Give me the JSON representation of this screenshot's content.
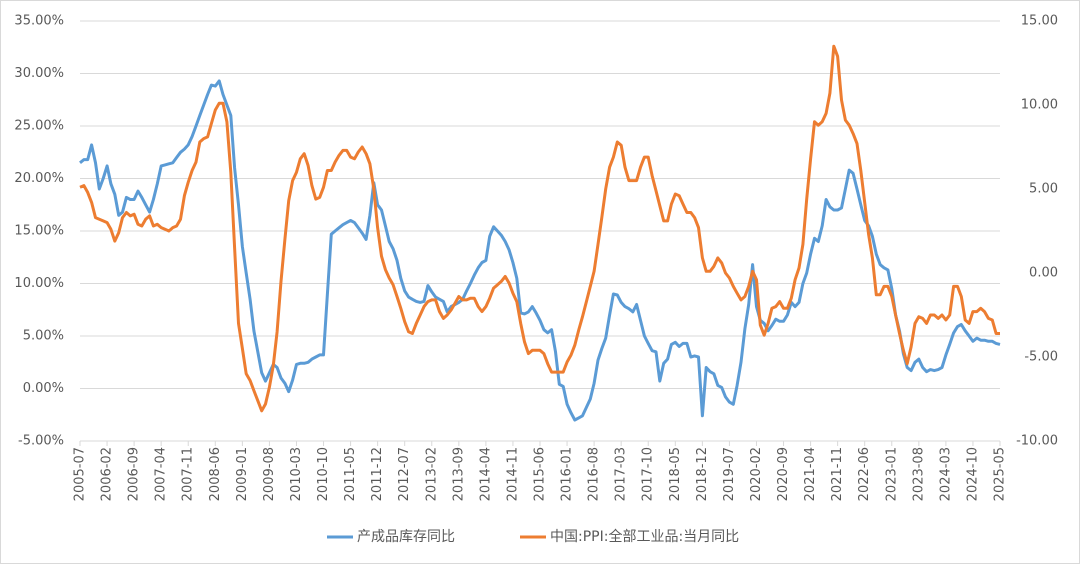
{
  "chart_data": {
    "type": "line",
    "categories": [
      "2005-07",
      null,
      null,
      null,
      null,
      null,
      null,
      "2006-02",
      null,
      null,
      null,
      null,
      null,
      null,
      "2006-09",
      null,
      null,
      null,
      null,
      null,
      null,
      "2007-04",
      null,
      null,
      null,
      null,
      null,
      null,
      "2007-11",
      null,
      null,
      null,
      null,
      null,
      null,
      "2008-06",
      null,
      null,
      null,
      null,
      null,
      null,
      "2009-01",
      null,
      null,
      null,
      null,
      null,
      null,
      "2009-08",
      null,
      null,
      null,
      null,
      null,
      null,
      "2010-03",
      null,
      null,
      null,
      null,
      null,
      null,
      "2010-10",
      null,
      null,
      null,
      null,
      null,
      null,
      "2011-05",
      null,
      null,
      null,
      null,
      null,
      null,
      "2011-12",
      null,
      null,
      null,
      null,
      null,
      null,
      "2012-07",
      null,
      null,
      null,
      null,
      null,
      null,
      "2013-02",
      null,
      null,
      null,
      null,
      null,
      null,
      "2013-09",
      null,
      null,
      null,
      null,
      null,
      null,
      "2014-04",
      null,
      null,
      null,
      null,
      null,
      null,
      "2014-11",
      null,
      null,
      null,
      null,
      null,
      null,
      "2015-06",
      null,
      null,
      null,
      null,
      null,
      null,
      "2016-01",
      null,
      null,
      null,
      null,
      null,
      null,
      "2016-08",
      null,
      null,
      null,
      null,
      null,
      null,
      "2017-03",
      null,
      null,
      null,
      null,
      null,
      null,
      "2017-10",
      null,
      null,
      null,
      null,
      null,
      null,
      "2018-05",
      null,
      null,
      null,
      null,
      null,
      null,
      "2018-12",
      null,
      null,
      null,
      null,
      null,
      null,
      "2019-07",
      null,
      null,
      null,
      null,
      null,
      null,
      "2020-02",
      null,
      null,
      null,
      null,
      null,
      null,
      "2020-09",
      null,
      null,
      null,
      null,
      null,
      null,
      "2021-04",
      null,
      null,
      null,
      null,
      null,
      null,
      "2021-11",
      null,
      null,
      null,
      null,
      null,
      null,
      "2022-06",
      null,
      null,
      null,
      null,
      null,
      null,
      "2023-01",
      null,
      null,
      null,
      null,
      null,
      null,
      "2023-08",
      null,
      null,
      null,
      null,
      null,
      null,
      "2024-03",
      null,
      null,
      null,
      null,
      null,
      null,
      "2024-10",
      null,
      null,
      null,
      null,
      null,
      null,
      "2025-05"
    ],
    "series": [
      {
        "name": "产成品库存同比",
        "color": "#5b9bd5",
        "values": [
          21.5,
          21.8,
          21.8,
          23.2,
          21.5,
          19.0,
          20.0,
          21.2,
          19.5,
          18.5,
          16.5,
          16.8,
          18.2,
          18.0,
          18.0,
          18.8,
          18.2,
          17.5,
          16.8,
          18.0,
          19.5,
          21.2,
          21.3,
          21.4,
          21.5,
          22.0,
          22.5,
          22.8,
          23.2,
          24.0,
          25.0,
          26.0,
          27.0,
          28.0,
          28.9,
          28.8,
          29.3,
          28.0,
          27.0,
          26.0,
          21.0,
          17.5,
          13.5,
          11.0,
          8.5,
          5.5,
          3.5,
          1.5,
          0.7,
          1.5,
          2.3,
          2.0,
          1.0,
          0.5,
          -0.3,
          0.8,
          2.3,
          2.4,
          2.4,
          2.5,
          2.8,
          3.0,
          3.2,
          3.2,
          9.0,
          14.7,
          15.0,
          15.3,
          15.6,
          15.8,
          16.0,
          15.8,
          15.3,
          14.8,
          14.2,
          16.5,
          19.6,
          17.5,
          17.0,
          15.5,
          14.0,
          13.3,
          12.2,
          10.5,
          9.3,
          8.7,
          8.5,
          8.3,
          8.2,
          8.3,
          9.8,
          9.2,
          8.7,
          8.5,
          8.3,
          7.3,
          7.8,
          8.0,
          8.2,
          8.5,
          9.3,
          10.0,
          10.8,
          11.5,
          12.0,
          12.2,
          14.5,
          15.4,
          15.0,
          14.6,
          14.0,
          13.2,
          12.0,
          10.5,
          7.2,
          7.1,
          7.3,
          7.8,
          7.2,
          6.5,
          5.6,
          5.3,
          5.6,
          3.5,
          0.4,
          0.2,
          -1.5,
          -2.3,
          -3.0,
          -2.8,
          -2.6,
          -1.8,
          -1.0,
          0.5,
          2.7,
          3.8,
          4.8,
          7.0,
          9.0,
          8.9,
          8.2,
          7.8,
          7.6,
          7.3,
          8.0,
          6.5,
          5.0,
          4.3,
          3.6,
          3.5,
          0.7,
          2.4,
          2.8,
          4.2,
          4.4,
          4.0,
          4.3,
          4.3,
          3.0,
          3.1,
          3.0,
          -2.6,
          2.0,
          1.6,
          1.4,
          0.3,
          0.1,
          -0.8,
          -1.3,
          -1.5,
          0.3,
          2.5,
          5.7,
          8.0,
          11.8,
          7.8,
          6.5,
          6.2,
          5.5,
          6.0,
          6.6,
          6.4,
          6.4,
          7.0,
          8.2,
          7.8,
          8.2,
          10.0,
          11.0,
          12.8,
          14.3,
          14.0,
          15.5,
          18.0,
          17.3,
          17.0,
          17.0,
          17.2,
          19.0,
          20.8,
          20.5,
          19.0,
          17.5,
          16.0,
          15.5,
          14.5,
          12.8,
          11.8,
          11.5,
          11.3,
          9.5,
          7.0,
          5.5,
          3.3,
          2.0,
          1.7,
          2.5,
          2.8,
          2.0,
          1.6,
          1.8,
          1.7,
          1.8,
          2.0,
          3.2,
          4.2,
          5.3,
          5.9,
          6.1,
          5.5,
          5.0,
          4.5,
          4.8,
          4.6,
          4.6,
          4.5,
          4.5,
          4.3,
          4.2
        ]
      },
      {
        "name": "中国:PPI:全部工业品:当月同比",
        "color": "#ed7d31",
        "axis": "y2",
        "values": [
          5.1,
          5.2,
          4.8,
          4.2,
          3.3,
          3.2,
          3.1,
          3.0,
          2.6,
          1.9,
          2.4,
          3.3,
          3.6,
          3.4,
          3.5,
          2.9,
          2.8,
          3.2,
          3.4,
          2.8,
          2.9,
          2.7,
          2.6,
          2.5,
          2.7,
          2.8,
          3.2,
          4.6,
          5.4,
          6.1,
          6.6,
          7.8,
          8.0,
          8.1,
          8.9,
          9.7,
          10.1,
          10.1,
          9.0,
          6.0,
          1.5,
          -3.0,
          -4.5,
          -6.0,
          -6.4,
          -7.0,
          -7.6,
          -8.2,
          -7.8,
          -6.8,
          -5.5,
          -3.5,
          -0.5,
          2.0,
          4.3,
          5.5,
          6.0,
          6.8,
          7.1,
          6.4,
          5.2,
          4.4,
          4.5,
          5.1,
          6.1,
          6.1,
          6.6,
          7.0,
          7.3,
          7.3,
          6.9,
          6.8,
          7.2,
          7.5,
          7.1,
          6.5,
          5.0,
          2.7,
          1.0,
          0.2,
          -0.3,
          -0.7,
          -1.4,
          -2.1,
          -2.9,
          -3.5,
          -3.6,
          -3.0,
          -2.5,
          -2.0,
          -1.7,
          -1.6,
          -1.6,
          -2.3,
          -2.7,
          -2.5,
          -2.2,
          -1.8,
          -1.4,
          -1.6,
          -1.6,
          -1.5,
          -1.5,
          -2.0,
          -2.3,
          -2.0,
          -1.5,
          -0.9,
          -0.7,
          -0.5,
          -0.2,
          -0.6,
          -1.2,
          -1.7,
          -3.0,
          -4.1,
          -4.8,
          -4.6,
          -4.6,
          -4.6,
          -4.8,
          -5.4,
          -5.9,
          -5.9,
          -5.9,
          -5.9,
          -5.3,
          -4.9,
          -4.3,
          -3.4,
          -2.6,
          -1.7,
          -0.8,
          0.1,
          1.7,
          3.3,
          5.0,
          6.3,
          6.9,
          7.8,
          7.6,
          6.3,
          5.5,
          5.5,
          5.5,
          6.3,
          6.9,
          6.9,
          5.8,
          4.9,
          4.0,
          3.1,
          3.1,
          4.1,
          4.7,
          4.6,
          4.1,
          3.6,
          3.6,
          3.3,
          2.7,
          0.9,
          0.1,
          0.1,
          0.4,
          0.9,
          0.6,
          0.0,
          -0.3,
          -0.8,
          -1.2,
          -1.6,
          -1.4,
          -0.8,
          0.1,
          -0.4,
          -3.1,
          -3.7,
          -3.0,
          -2.1,
          -2.0,
          -1.7,
          -2.1,
          -2.1,
          -1.5,
          -0.4,
          0.3,
          1.7,
          4.4,
          6.8,
          9.0,
          8.8,
          9.0,
          9.5,
          10.7,
          13.5,
          12.9,
          10.3,
          9.1,
          8.8,
          8.3,
          7.7,
          6.1,
          4.2,
          2.3,
          0.9,
          -1.3,
          -1.3,
          -0.8,
          -0.8,
          -1.4,
          -2.5,
          -3.6,
          -4.6,
          -5.4,
          -4.4,
          -3.0,
          -2.6,
          -2.7,
          -3.0,
          -2.5,
          -2.5,
          -2.7,
          -2.5,
          -2.8,
          -2.5,
          -0.8,
          -0.8,
          -1.4,
          -2.8,
          -3.0,
          -2.3,
          -2.3,
          -2.1,
          -2.3,
          -2.7,
          -2.8,
          -3.6,
          -3.6
        ]
      }
    ],
    "ylim": [
      -5,
      35
    ],
    "yticks": [
      {
        "value": -5,
        "label": "-5.00%"
      },
      {
        "value": 0,
        "label": "0.00%"
      },
      {
        "value": 5,
        "label": "5.00%"
      },
      {
        "value": 10,
        "label": "10.00%"
      },
      {
        "value": 15,
        "label": "15.00%"
      },
      {
        "value": 20,
        "label": "20.00%"
      },
      {
        "value": 25,
        "label": "25.00%"
      },
      {
        "value": 30,
        "label": "30.00%"
      },
      {
        "value": 35,
        "label": "35.00%"
      }
    ],
    "y2lim": [
      -10,
      15
    ],
    "y2ticks": [
      {
        "value": -10,
        "label": "-10.00"
      },
      {
        "value": -5,
        "label": "-5.00"
      },
      {
        "value": 0,
        "label": "0.00"
      },
      {
        "value": 5,
        "label": "5.00"
      },
      {
        "value": 10,
        "label": "10.00"
      },
      {
        "value": 15,
        "label": "15.00"
      }
    ],
    "grid": true,
    "legend": "bottom"
  }
}
